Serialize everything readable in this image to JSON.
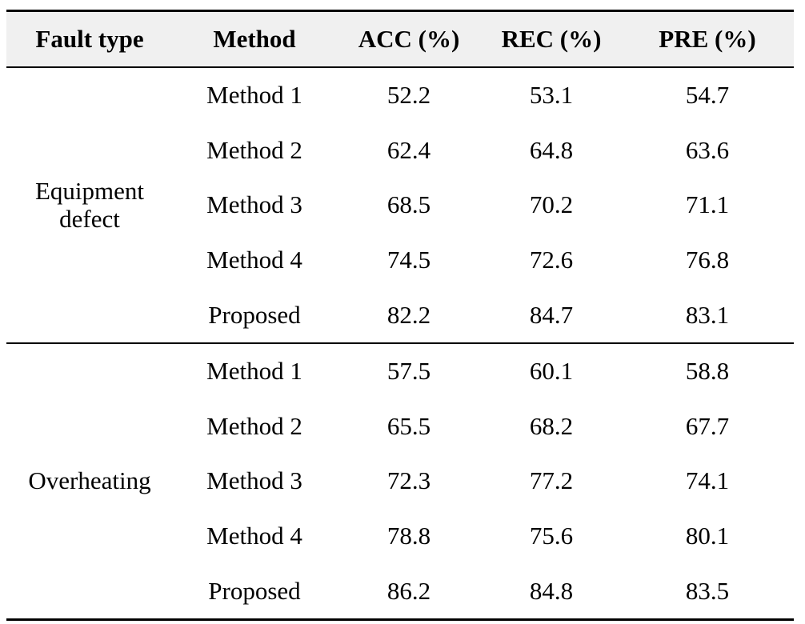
{
  "table": {
    "headers": [
      "Fault type",
      "Method",
      "ACC (%)",
      "REC (%)",
      "PRE (%)"
    ],
    "groups": [
      {
        "fault_type_lines": [
          "Equipment",
          "defect"
        ],
        "rows": [
          {
            "method": "Method 1",
            "acc": "52.2",
            "rec": "53.1",
            "pre": "54.7"
          },
          {
            "method": "Method 2",
            "acc": "62.4",
            "rec": "64.8",
            "pre": "63.6"
          },
          {
            "method": "Method 3",
            "acc": "68.5",
            "rec": "70.2",
            "pre": "71.1"
          },
          {
            "method": "Method 4",
            "acc": "74.5",
            "rec": "72.6",
            "pre": "76.8"
          },
          {
            "method": "Proposed",
            "acc": "82.2",
            "rec": "84.7",
            "pre": "83.1"
          }
        ]
      },
      {
        "fault_type_lines": [
          "Overheating"
        ],
        "rows": [
          {
            "method": "Method 1",
            "acc": "57.5",
            "rec": "60.1",
            "pre": "58.8"
          },
          {
            "method": "Method 2",
            "acc": "65.5",
            "rec": "68.2",
            "pre": "67.7"
          },
          {
            "method": "Method 3",
            "acc": "72.3",
            "rec": "77.2",
            "pre": "74.1"
          },
          {
            "method": "Method 4",
            "acc": "78.8",
            "rec": "75.6",
            "pre": "80.1"
          },
          {
            "method": "Proposed",
            "acc": "86.2",
            "rec": "84.8",
            "pre": "83.5"
          }
        ]
      }
    ]
  }
}
